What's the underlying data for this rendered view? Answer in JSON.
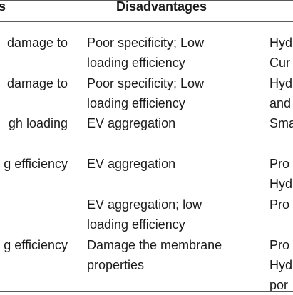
{
  "table": {
    "headers": [
      "s",
      "Disadvantages"
    ],
    "rows": [
      {
        "c1": [
          "damage to"
        ],
        "c2": [
          "Poor specificity; Low",
          "loading efficiency"
        ],
        "c3": [
          "Hyd",
          "Cur"
        ]
      },
      {
        "c1": [
          "damage to"
        ],
        "c2": [
          "Poor specificity; Low",
          "loading efficiency"
        ],
        "c3": [
          "Hyd",
          "and"
        ]
      },
      {
        "c1": [
          "gh loading"
        ],
        "c2": [
          "EV aggregation"
        ],
        "c3": [
          "Sma"
        ]
      },
      {
        "c1": [
          "g efficiency"
        ],
        "c2": [
          "EV aggregation"
        ],
        "c3": [
          "Pro",
          "Hyd"
        ]
      },
      {
        "c1": [],
        "c2": [
          "EV aggregation; low",
          "loading efficiency"
        ],
        "c3": [
          "Pro"
        ]
      },
      {
        "c1": [
          "g efficiency"
        ],
        "c2": [
          "Damage the membrane",
          "properties"
        ],
        "c3": [
          "Pro",
          "Hyd",
          "por"
        ]
      }
    ]
  }
}
